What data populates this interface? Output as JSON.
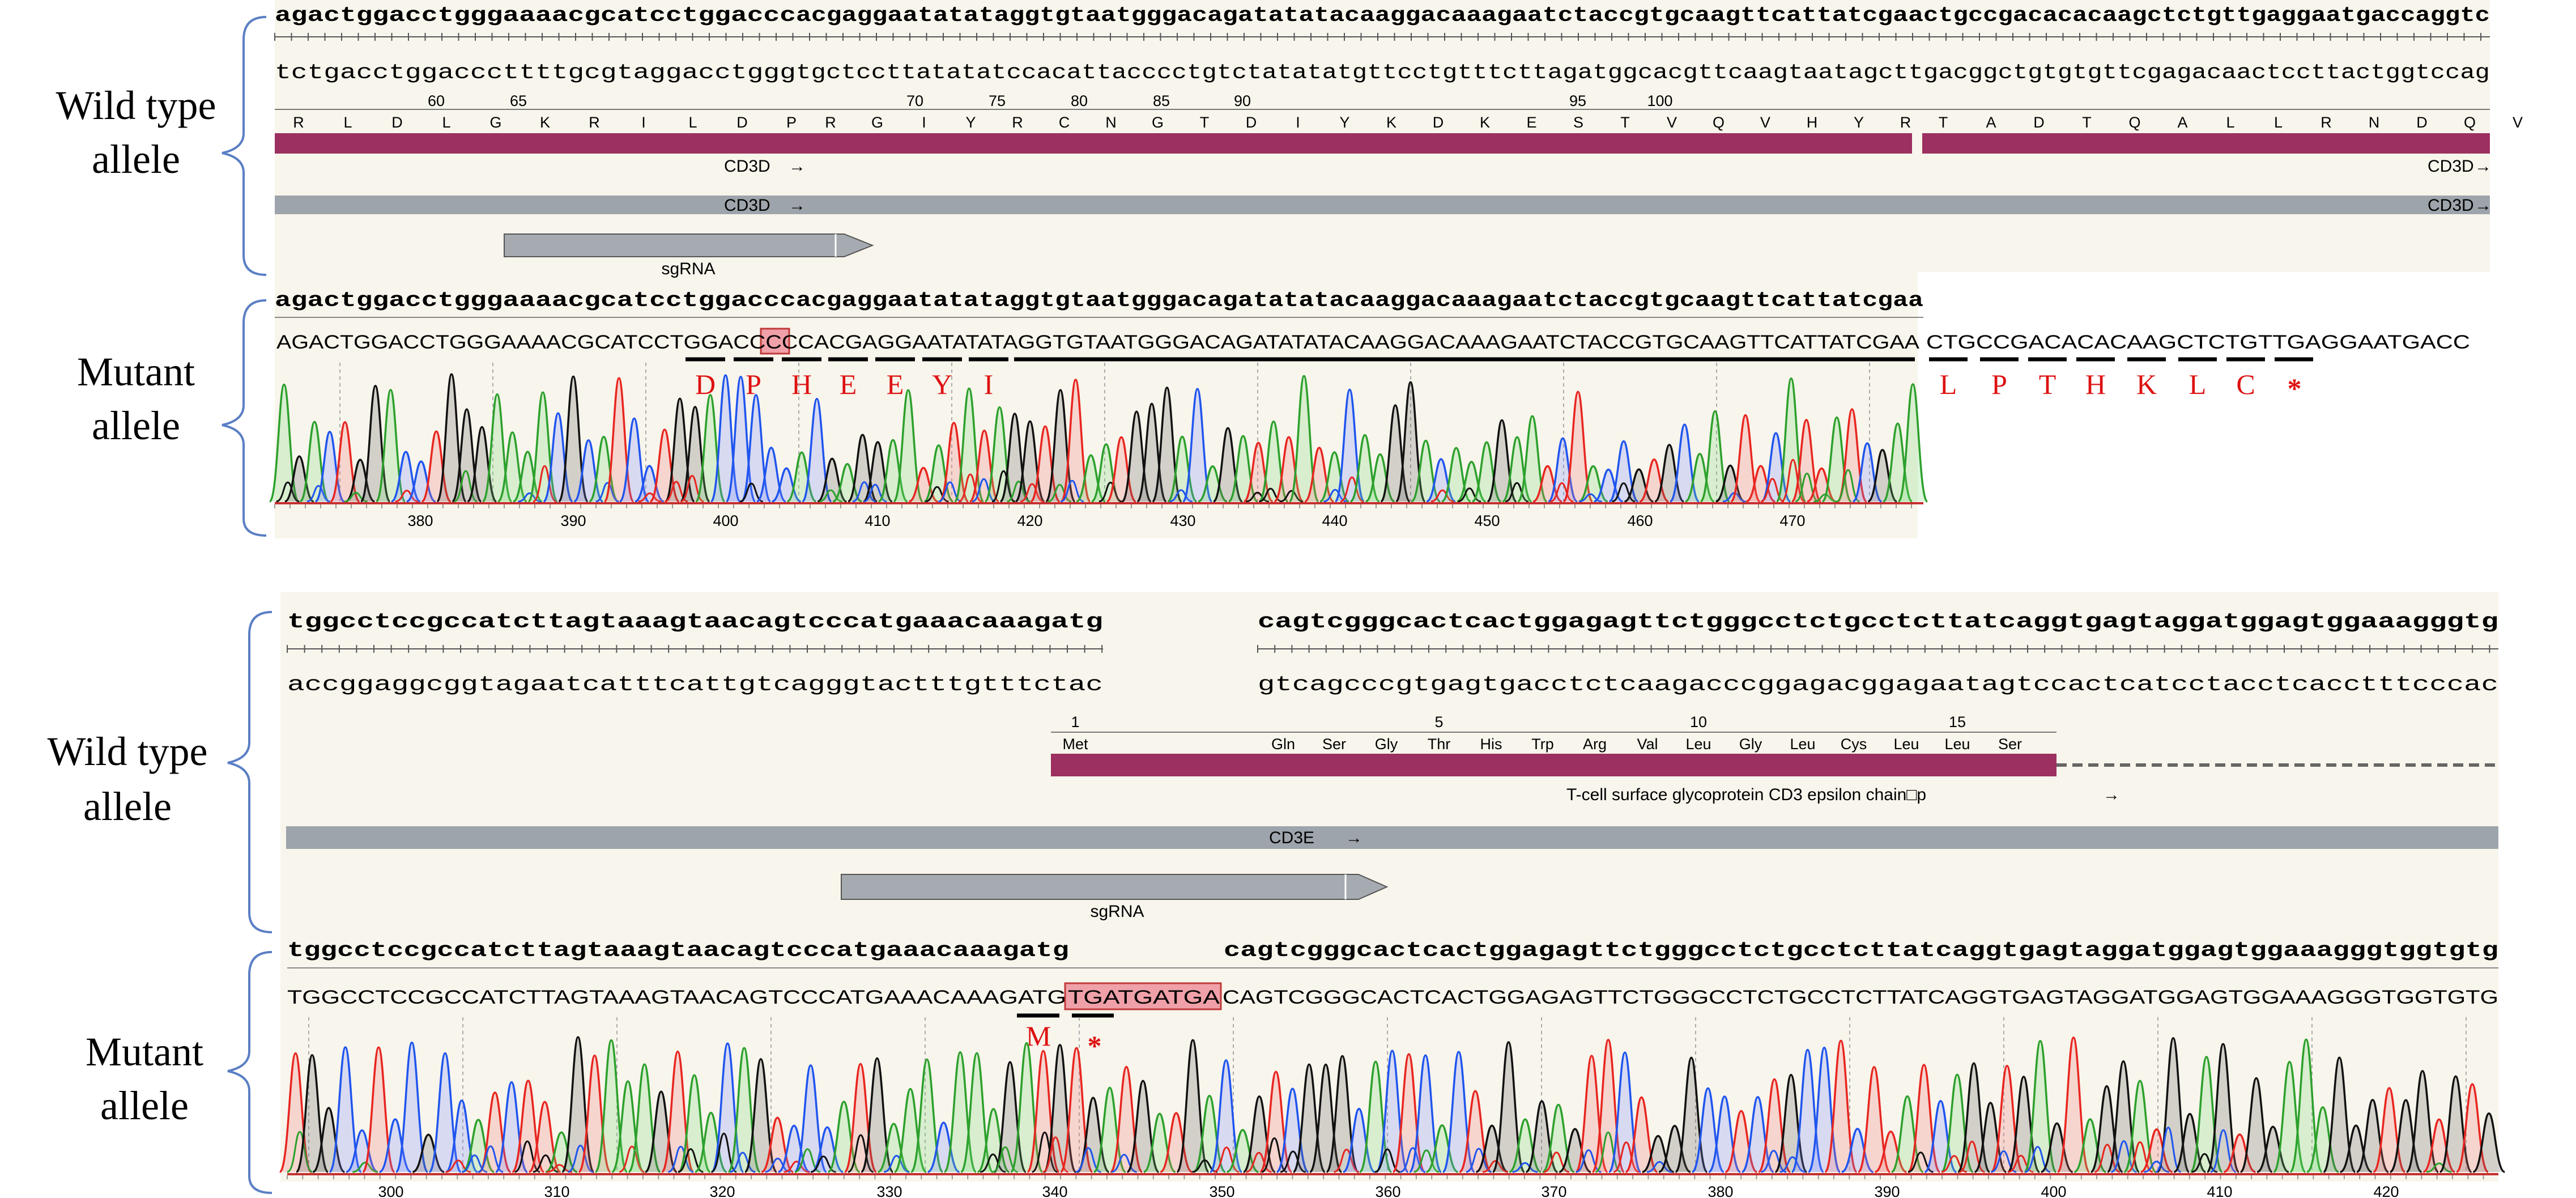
{
  "colors": {
    "feature_magenta": "#9c3060",
    "feature_gray": "#9ea4ab",
    "highlight_pink": "#f0a0a8",
    "stop_red": "#dd1111",
    "trace_A": "#2ca02c",
    "trace_C": "#1f55ee",
    "trace_G": "#111111",
    "trace_T": "#e8251f"
  },
  "panel_top": {
    "wt_label": [
      "Wild type",
      "allele"
    ],
    "mut_label": [
      "Mutant",
      "allele"
    ],
    "wt_top_seq": [
      "agactggacctgggaaaacgcatcctggaccc",
      "acgaggaatatataggtgtaatgggacagatatatacaaggacaaagaatctaccgtgcaagttcattatcgaa",
      "ctgccgacacacaagctctgttgaggaatgaccaggtc"
    ],
    "wt_bottom_seq": [
      "tctgacctggacccttttgcgtaggacctggg",
      "tgctccttatatatccacattacccctgtctatatatgttcctgtttcttagatggcacgttcaagtaatagctt",
      "gacggctgtgtgttcgagacaactccttactggtccag"
    ],
    "aa_numbers": [
      "60",
      "65",
      "70",
      "75",
      "80",
      "85",
      "90",
      "95",
      "100"
    ],
    "aa_letters_left": [
      "R",
      "L",
      "D",
      "L",
      "G",
      "K",
      "R",
      "I",
      "L",
      "D",
      "P"
    ],
    "aa_letters_mid": [
      "R",
      "G",
      "I",
      "Y",
      "R",
      "C",
      "N",
      "G",
      "T",
      "D",
      "I",
      "Y",
      "K",
      "D",
      "K",
      "E",
      "S",
      "T",
      "V",
      "Q",
      "V",
      "H",
      "Y",
      "R"
    ],
    "aa_letters_right": [
      "T",
      "A",
      "D",
      "T",
      "Q",
      "A",
      "L",
      "L",
      "R",
      "N",
      "D",
      "Q",
      "V"
    ],
    "cd3d_label": "CD3D",
    "arrow": "→",
    "sgrna_label": "sgRNA",
    "mut_top_seq": [
      "agactggacctgggaaaacgcatcctggaccc",
      "acgaggaatatataggtgtaatgggacagatatatacaaggacaaagaatctaccgtgcaagttcattatcgaa"
    ],
    "mut_read_seq": "AGACTGGACCTGGGAAAACGCATCCTGGACCCCCACGAGGAATATATAGGTGTAATGGGACAGATATATACAAGGACAAAGAATCTACCGTGCAAGTTCATTATCGAA",
    "mut_read_tail": "CTGCCGACACACAAGCTCTGTTGAGGAATGACC",
    "mut_highlight": "CC",
    "mutant_aa": [
      "D",
      "P",
      "H",
      "E",
      "E",
      "Y",
      "I",
      "L",
      "P",
      "T",
      "H",
      "K",
      "L",
      "C"
    ],
    "stop_symbol": "*",
    "positions": [
      "380",
      "390",
      "400",
      "410",
      "420",
      "430",
      "440",
      "450",
      "460",
      "470"
    ]
  },
  "panel_bottom": {
    "wt_label": [
      "Wild type",
      "allele"
    ],
    "mut_label": [
      "Mutant",
      "allele"
    ],
    "wt_top_seq": [
      "tggcctccgccatcttagtaaagtaacagtcccatgaaacaaagatg",
      "cagtcgggcactcactggagagttctgggcctctgcctcttatcaggtgagtaggatggagtggaaagggtg"
    ],
    "wt_bottom_seq": [
      "accggaggcggtagaatcatttcattgtcagggtactttgtttctac",
      "gtcagcccgtgagtgacctctcaagacccggagacggagaatagtccactcatcctacctcacctttcccac"
    ],
    "aa_numbers": [
      "1",
      "5",
      "10",
      "15"
    ],
    "aa_names": [
      "Met",
      "Gln",
      "Ser",
      "Gly",
      "Thr",
      "His",
      "Trp",
      "Arg",
      "Val",
      "Leu",
      "Gly",
      "Leu",
      "Cys",
      "Leu",
      "Leu",
      "Ser"
    ],
    "cd3e_protein_label": "T-cell surface glycoprotein CD3 epsilon chain□p",
    "cd3e_label": "CD3E",
    "arrow": "→",
    "sgrna_label": "sgRNA",
    "mut_top_seq": [
      "tggcctccgccatcttagtaaagtaacagtcccatgaaacaaagatg",
      "cagtcgggcactcactggagagttctgggcctctgcctcttatcaggtgagtaggatggagtggaaagggtggtgtg"
    ],
    "mut_read_left": "TGGCCTCCGCCATCTTAGTAAAGTAACAGTCCCATGAAACAAAGATG",
    "mut_highlight": "TGATGATGA",
    "mut_read_right": "CAGTCGGGCACTCACTGGAGAGTTCTGGGCCTCTGCCTCTTATCAGGTGAGTAGGATGGAGTGGAAAGGGTGGTGTG",
    "mutant_aa": [
      "M"
    ],
    "stop_symbol": "*",
    "positions": [
      "300",
      "310",
      "320",
      "330",
      "340",
      "350",
      "360",
      "370",
      "380",
      "390",
      "400",
      "410",
      "420"
    ]
  }
}
